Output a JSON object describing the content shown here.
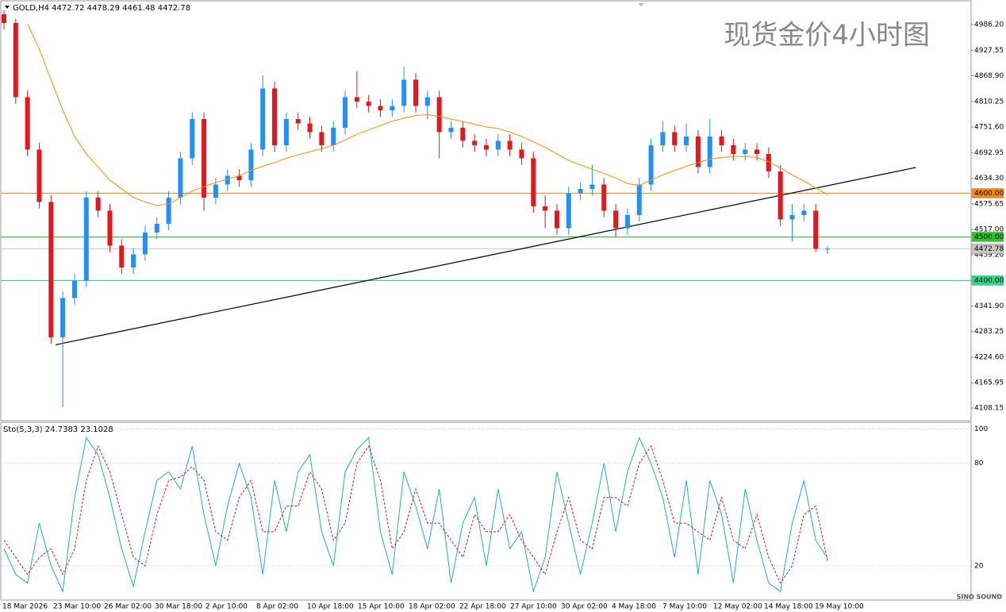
{
  "chart_data": [
    {
      "type": "candlestick",
      "header": "GOLD,H4  4472.72 4478.29 4461.48 4472.78",
      "watermark": "现货金价4小时图",
      "up_color": "#1e90ff",
      "down_color": "#e8141e",
      "open": [
        5010,
        4990,
        4820,
        4700,
        4580,
        4270,
        4360,
        4400,
        4590,
        4560,
        4480,
        4430,
        4460,
        4510,
        4530,
        4590,
        4680,
        4770,
        4590,
        4620,
        4640,
        4630,
        4700,
        4840,
        4710,
        4770,
        4760,
        4740,
        4710,
        4750,
        4820,
        4810,
        4800,
        4790,
        4800,
        4860,
        4800,
        4820,
        4740,
        4750,
        4720,
        4710,
        4700,
        4720,
        4700,
        4680,
        4570,
        4560,
        4520,
        4600,
        4610,
        4620,
        4560,
        4520,
        4550,
        4620,
        4710,
        4740,
        4710,
        4730,
        4660,
        4730,
        4710,
        4690,
        4700,
        4690,
        4650,
        4540,
        4550,
        4560,
        4472.72
      ],
      "high": [
        5020,
        5000,
        4835,
        4715,
        4595,
        4375,
        4415,
        4605,
        4605,
        4575,
        4495,
        4475,
        4525,
        4545,
        4605,
        4695,
        4785,
        4785,
        4635,
        4655,
        4655,
        4715,
        4870,
        4855,
        4785,
        4785,
        4775,
        4755,
        4765,
        4835,
        4880,
        4825,
        4815,
        4815,
        4890,
        4875,
        4835,
        4835,
        4765,
        4765,
        4735,
        4725,
        4735,
        4735,
        4715,
        4695,
        4595,
        4575,
        4615,
        4625,
        4665,
        4635,
        4575,
        4565,
        4635,
        4725,
        4765,
        4755,
        4760,
        4745,
        4770,
        4745,
        4725,
        4715,
        4715,
        4705,
        4665,
        4575,
        4575,
        4575,
        4478.29
      ],
      "low": [
        4975,
        4805,
        4685,
        4565,
        4255,
        4110,
        4345,
        4385,
        4545,
        4465,
        4415,
        4415,
        4445,
        4495,
        4515,
        4575,
        4665,
        4560,
        4575,
        4605,
        4615,
        4615,
        4685,
        4695,
        4695,
        4745,
        4725,
        4695,
        4695,
        4735,
        4795,
        4785,
        4775,
        4775,
        4785,
        4785,
        4770,
        4680,
        4725,
        4705,
        4695,
        4685,
        4685,
        4685,
        4665,
        4555,
        4520,
        4505,
        4505,
        4585,
        4595,
        4545,
        4500,
        4505,
        4535,
        4605,
        4695,
        4695,
        4695,
        4645,
        4645,
        4695,
        4675,
        4675,
        4675,
        4635,
        4525,
        4490,
        4535,
        4465,
        4461.48
      ],
      "close": [
        4990,
        4820,
        4700,
        4580,
        4270,
        4360,
        4400,
        4590,
        4560,
        4480,
        4430,
        4460,
        4510,
        4530,
        4590,
        4680,
        4770,
        4590,
        4620,
        4640,
        4630,
        4700,
        4840,
        4710,
        4770,
        4760,
        4740,
        4710,
        4750,
        4820,
        4810,
        4800,
        4790,
        4800,
        4860,
        4800,
        4820,
        4740,
        4750,
        4720,
        4710,
        4700,
        4720,
        4700,
        4680,
        4570,
        4560,
        4520,
        4600,
        4610,
        4620,
        4560,
        4520,
        4550,
        4620,
        4710,
        4740,
        4710,
        4730,
        4660,
        4730,
        4710,
        4690,
        4700,
        4690,
        4650,
        4540,
        4550,
        4560,
        4472.72,
        4472.78
      ],
      "ma": {
        "color": "#ff8c00",
        "values": [
          null,
          null,
          4988,
          4930,
          4860,
          4790,
          4730,
          4690,
          4660,
          4630,
          4610,
          4590,
          4580,
          4572,
          4575,
          4590,
          4605,
          4615,
          4625,
          4632,
          4640,
          4652,
          4662,
          4670,
          4680,
          4688,
          4695,
          4702,
          4710,
          4722,
          4735,
          4745,
          4755,
          4765,
          4772,
          4778,
          4780,
          4776,
          4770,
          4764,
          4758,
          4752,
          4748,
          4740,
          4730,
          4718,
          4705,
          4690,
          4675,
          4665,
          4655,
          4645,
          4635,
          4622,
          4618,
          4630,
          4642,
          4652,
          4662,
          4670,
          4678,
          4682,
          4684,
          4684,
          4682,
          4672,
          4658,
          4642,
          4628,
          4612,
          4597
        ]
      },
      "trendline": {
        "x": [
          4.4,
          77.5
        ],
        "y": [
          4253,
          4659
        ],
        "color": "#000000"
      },
      "levels": [
        {
          "value": 4600,
          "label": "4600.00",
          "color": "#ff8c00"
        },
        {
          "value": 4500,
          "label": "4500.00",
          "color": "#22cc22"
        },
        {
          "value": 4400,
          "label": "4400.00",
          "color": "#22dd88"
        },
        {
          "value": 4472.78,
          "label": "4472.78",
          "color": "#c8c8c8"
        }
      ],
      "ylim": [
        4079,
        5039
      ],
      "yticks": [
        {
          "value": 4986.2,
          "label": "4986.20"
        },
        4927.55,
        {
          "value": 4868.9,
          "label": "4868.90"
        },
        4810.25,
        {
          "value": 4751.6,
          "label": "4751.60"
        },
        4692.95,
        {
          "value": 4634.3,
          "label": "4634.30"
        },
        4575.65,
        {
          "value": 4517,
          "label": "4517.00"
        },
        {
          "value": 4459.2,
          "label": "4459.20"
        },
        {
          "value": 4341.9,
          "label": "4341.90"
        },
        4283.25,
        {
          "value": 4224.6,
          "label": "4224.60"
        },
        4165.95,
        4108.15
      ],
      "time_labels": [
        "18 Mar 2026",
        "23 Mar 10:00",
        "26 Mar 02:00",
        "30 Mar 18:00",
        "2 Apr 10:00",
        "8 Apr 02:00",
        "10 Apr 18:00",
        "15 Apr 10:00",
        "18 Apr 02:00",
        "22 Apr 18:00",
        "27 Apr 10:00",
        "30 Apr 02:00",
        "4 May 18:00",
        "7 May 10:00",
        "12 May 02:00",
        "14 May 18:00",
        "19 May 10:00"
      ],
      "logo": "SINO SOUND"
    },
    {
      "type": "line",
      "title": "Sto(5,3,3) 24.7383 23.1028",
      "series": [
        {
          "name": "Main",
          "color": "#20b2aa",
          "dash": false,
          "values": [
            30,
            15,
            10,
            45,
            20,
            5,
            60,
            95,
            85,
            60,
            30,
            8,
            40,
            70,
            75,
            65,
            90,
            50,
            20,
            55,
            80,
            60,
            15,
            70,
            40,
            75,
            85,
            40,
            20,
            75,
            88,
            95,
            40,
            15,
            75,
            55,
            30,
            65,
            10,
            45,
            60,
            20,
            65,
            30,
            40,
            5,
            25,
            75,
            45,
            15,
            45,
            80,
            40,
            75,
            95,
            80,
            60,
            25,
            70,
            15,
            70,
            50,
            10,
            65,
            35,
            10,
            5,
            45,
            70,
            35,
            24.7383
          ]
        },
        {
          "name": "Signal",
          "color": "#e8141e",
          "dash": true,
          "values": [
            35,
            25,
            15,
            25,
            30,
            15,
            30,
            70,
            90,
            75,
            50,
            25,
            20,
            50,
            70,
            72,
            78,
            70,
            40,
            35,
            60,
            70,
            40,
            40,
            55,
            55,
            75,
            65,
            35,
            45,
            80,
            90,
            70,
            30,
            40,
            65,
            45,
            45,
            35,
            25,
            50,
            40,
            40,
            50,
            35,
            25,
            15,
            40,
            60,
            35,
            30,
            60,
            60,
            55,
            80,
            90,
            70,
            45,
            45,
            40,
            35,
            60,
            35,
            30,
            50,
            25,
            10,
            20,
            50,
            55,
            23.1028
          ]
        }
      ],
      "ylim": [
        0,
        104
      ],
      "yticks": [
        100,
        80,
        20
      ]
    }
  ]
}
